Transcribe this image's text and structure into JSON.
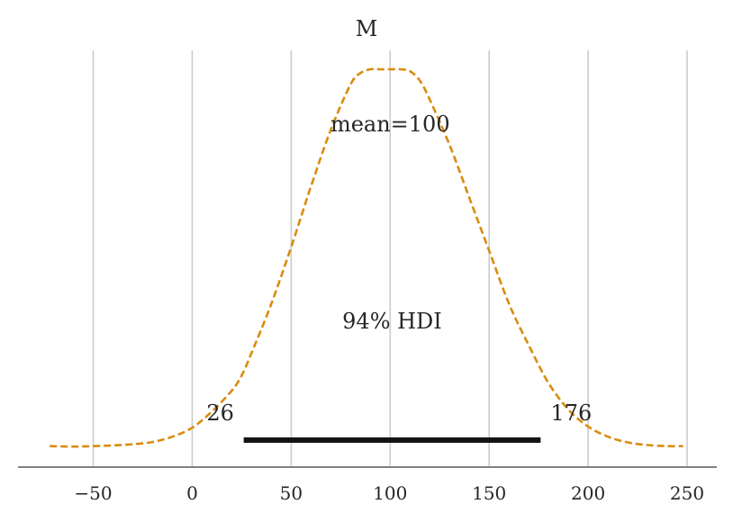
{
  "chart_data": {
    "type": "line",
    "title": "M",
    "xlabel": "",
    "ylabel": "",
    "xlim": [
      -88,
      265
    ],
    "xticks": [
      -50,
      0,
      50,
      100,
      150,
      200,
      250
    ],
    "xtick_labels": [
      "−50",
      "0",
      "50",
      "100",
      "150",
      "200",
      "250"
    ],
    "grid": "vertical",
    "legend": "none",
    "colors": {
      "density": "#d98c0d",
      "hdi": "#141414",
      "grid": "#cccccc",
      "axis": "#808080"
    },
    "density": {
      "x": [
        -72,
        -60,
        -50,
        -40,
        -30,
        -20,
        -10,
        0,
        10,
        20,
        25,
        30,
        40,
        50,
        60,
        70,
        80,
        85,
        90,
        95,
        100,
        105,
        110,
        115,
        120,
        130,
        140,
        150,
        160,
        170,
        180,
        190,
        200,
        210,
        220,
        230,
        240,
        248
      ],
      "y": [
        0.003,
        0.002,
        0.003,
        0.005,
        0.008,
        0.014,
        0.028,
        0.052,
        0.095,
        0.15,
        0.19,
        0.25,
        0.38,
        0.53,
        0.69,
        0.84,
        0.96,
        0.99,
        1.0,
        1.0,
        1.0,
        1.0,
        0.995,
        0.97,
        0.92,
        0.8,
        0.66,
        0.52,
        0.38,
        0.27,
        0.17,
        0.1,
        0.055,
        0.028,
        0.013,
        0.006,
        0.003,
        0.003
      ]
    },
    "mean": {
      "value": 100,
      "label": "mean=100"
    },
    "hdi": {
      "prob_label": "94% HDI",
      "lower": 26,
      "upper": 176,
      "lower_label": "26",
      "upper_label": "176"
    }
  }
}
